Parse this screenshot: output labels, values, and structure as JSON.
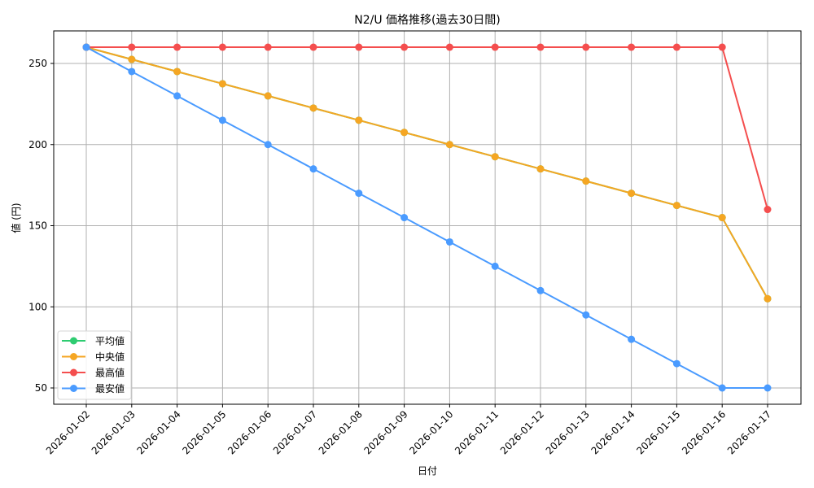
{
  "chart_data": {
    "type": "line",
    "title": "N2/U 価格推移(過去30日間)",
    "xlabel": "日付",
    "ylabel": "値 (円)",
    "ylim": [
      40,
      270
    ],
    "yticks": [
      50,
      100,
      150,
      200,
      250
    ],
    "grid": true,
    "legend_position": "lower left",
    "categories": [
      "2026-01-02",
      "2026-01-03",
      "2026-01-04",
      "2026-01-05",
      "2026-01-06",
      "2026-01-07",
      "2026-01-08",
      "2026-01-09",
      "2026-01-10",
      "2026-01-11",
      "2026-01-12",
      "2026-01-13",
      "2026-01-14",
      "2026-01-15",
      "2026-01-16",
      "2026-01-17"
    ],
    "series": [
      {
        "name": "平均値",
        "color": "#2ecc71",
        "values": [
          260,
          252.5,
          245,
          237.5,
          230,
          222.5,
          215,
          207.5,
          200,
          192.5,
          185,
          177.5,
          170,
          162.5,
          155,
          105
        ]
      },
      {
        "name": "中央値",
        "color": "#f5a623",
        "values": [
          260,
          252.5,
          245,
          237.5,
          230,
          222.5,
          215,
          207.5,
          200,
          192.5,
          185,
          177.5,
          170,
          162.5,
          155,
          105
        ]
      },
      {
        "name": "最高値",
        "color": "#f44e4e",
        "values": [
          260,
          260,
          260,
          260,
          260,
          260,
          260,
          260,
          260,
          260,
          260,
          260,
          260,
          260,
          260,
          160
        ]
      },
      {
        "name": "最安値",
        "color": "#4a9bff",
        "values": [
          260,
          245,
          230,
          215,
          200,
          185,
          170,
          155,
          140,
          125,
          110,
          95,
          80,
          65,
          50,
          50
        ]
      }
    ]
  }
}
